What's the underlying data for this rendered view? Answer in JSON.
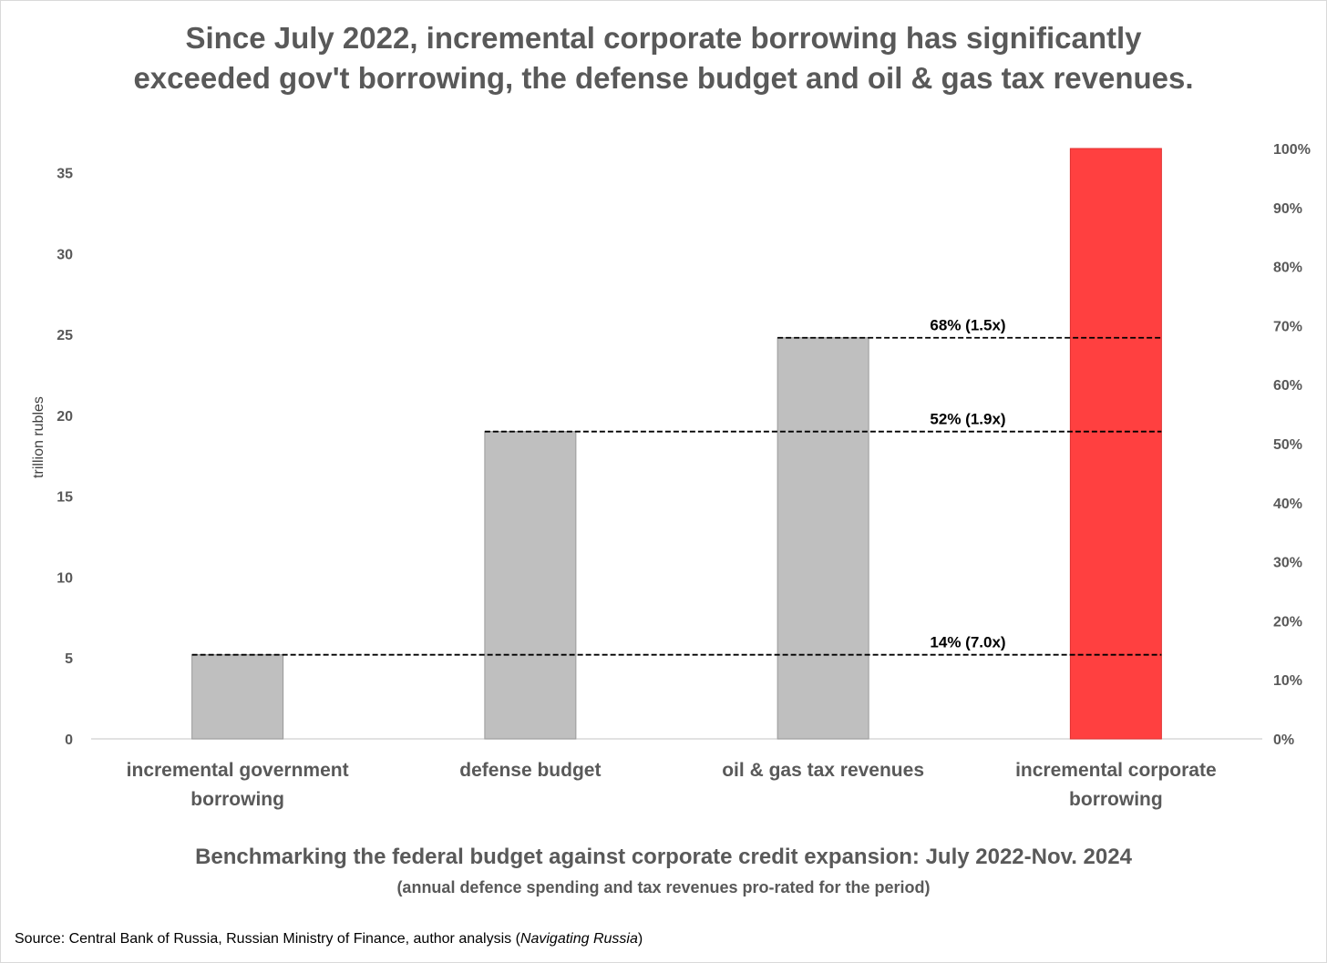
{
  "chart_data": {
    "type": "bar",
    "title": "Since July 2022, incremental corporate borrowing has significantly exceeded gov't borrowing, the defense budget and oil & gas tax revenues.",
    "title_lines": [
      "Since July 2022, incremental corporate borrowing has significantly",
      "exceeded gov't borrowing, the defense budget and oil & gas tax revenues."
    ],
    "subtitle": "Benchmarking  the federal budget against corporate credit expansion: July 2022-Nov. 2024",
    "note": "(annual defence spending and tax revenues pro-rated for the period)",
    "source_prefix": "Source: Central Bank of Russia, Russian Ministry of Finance, author analysis (",
    "source_italic": "Navigating Russia",
    "source_suffix": ")",
    "ylabel": "trillion rubles",
    "ylim": [
      0,
      36.5
    ],
    "yticks": [
      "0",
      "5",
      "10",
      "15",
      "20",
      "25",
      "30",
      "35"
    ],
    "y2lim": [
      0,
      1
    ],
    "y2ticks": [
      "0%",
      "10%",
      "20%",
      "30%",
      "40%",
      "50%",
      "60%",
      "70%",
      "80%",
      "90%",
      "100%"
    ],
    "categories": [
      [
        "incremental government",
        "borrowing"
      ],
      [
        "defense budget"
      ],
      [
        "oil & gas tax revenues"
      ],
      [
        "incremental corporate",
        "borrowing"
      ]
    ],
    "values": [
      5.2,
      19.0,
      24.8,
      36.5
    ],
    "bar_colors": [
      "#bfbfbf",
      "#bfbfbf",
      "#bfbfbf",
      "#ff4040"
    ],
    "reference_lines": [
      {
        "from_category": 2,
        "value": 24.8,
        "label": "68%  (1.5x)"
      },
      {
        "from_category": 1,
        "value": 19.0,
        "label": "52%  (1.9x)"
      },
      {
        "from_category": 0,
        "value": 5.2,
        "label": "14%  (7.0x)"
      }
    ]
  }
}
